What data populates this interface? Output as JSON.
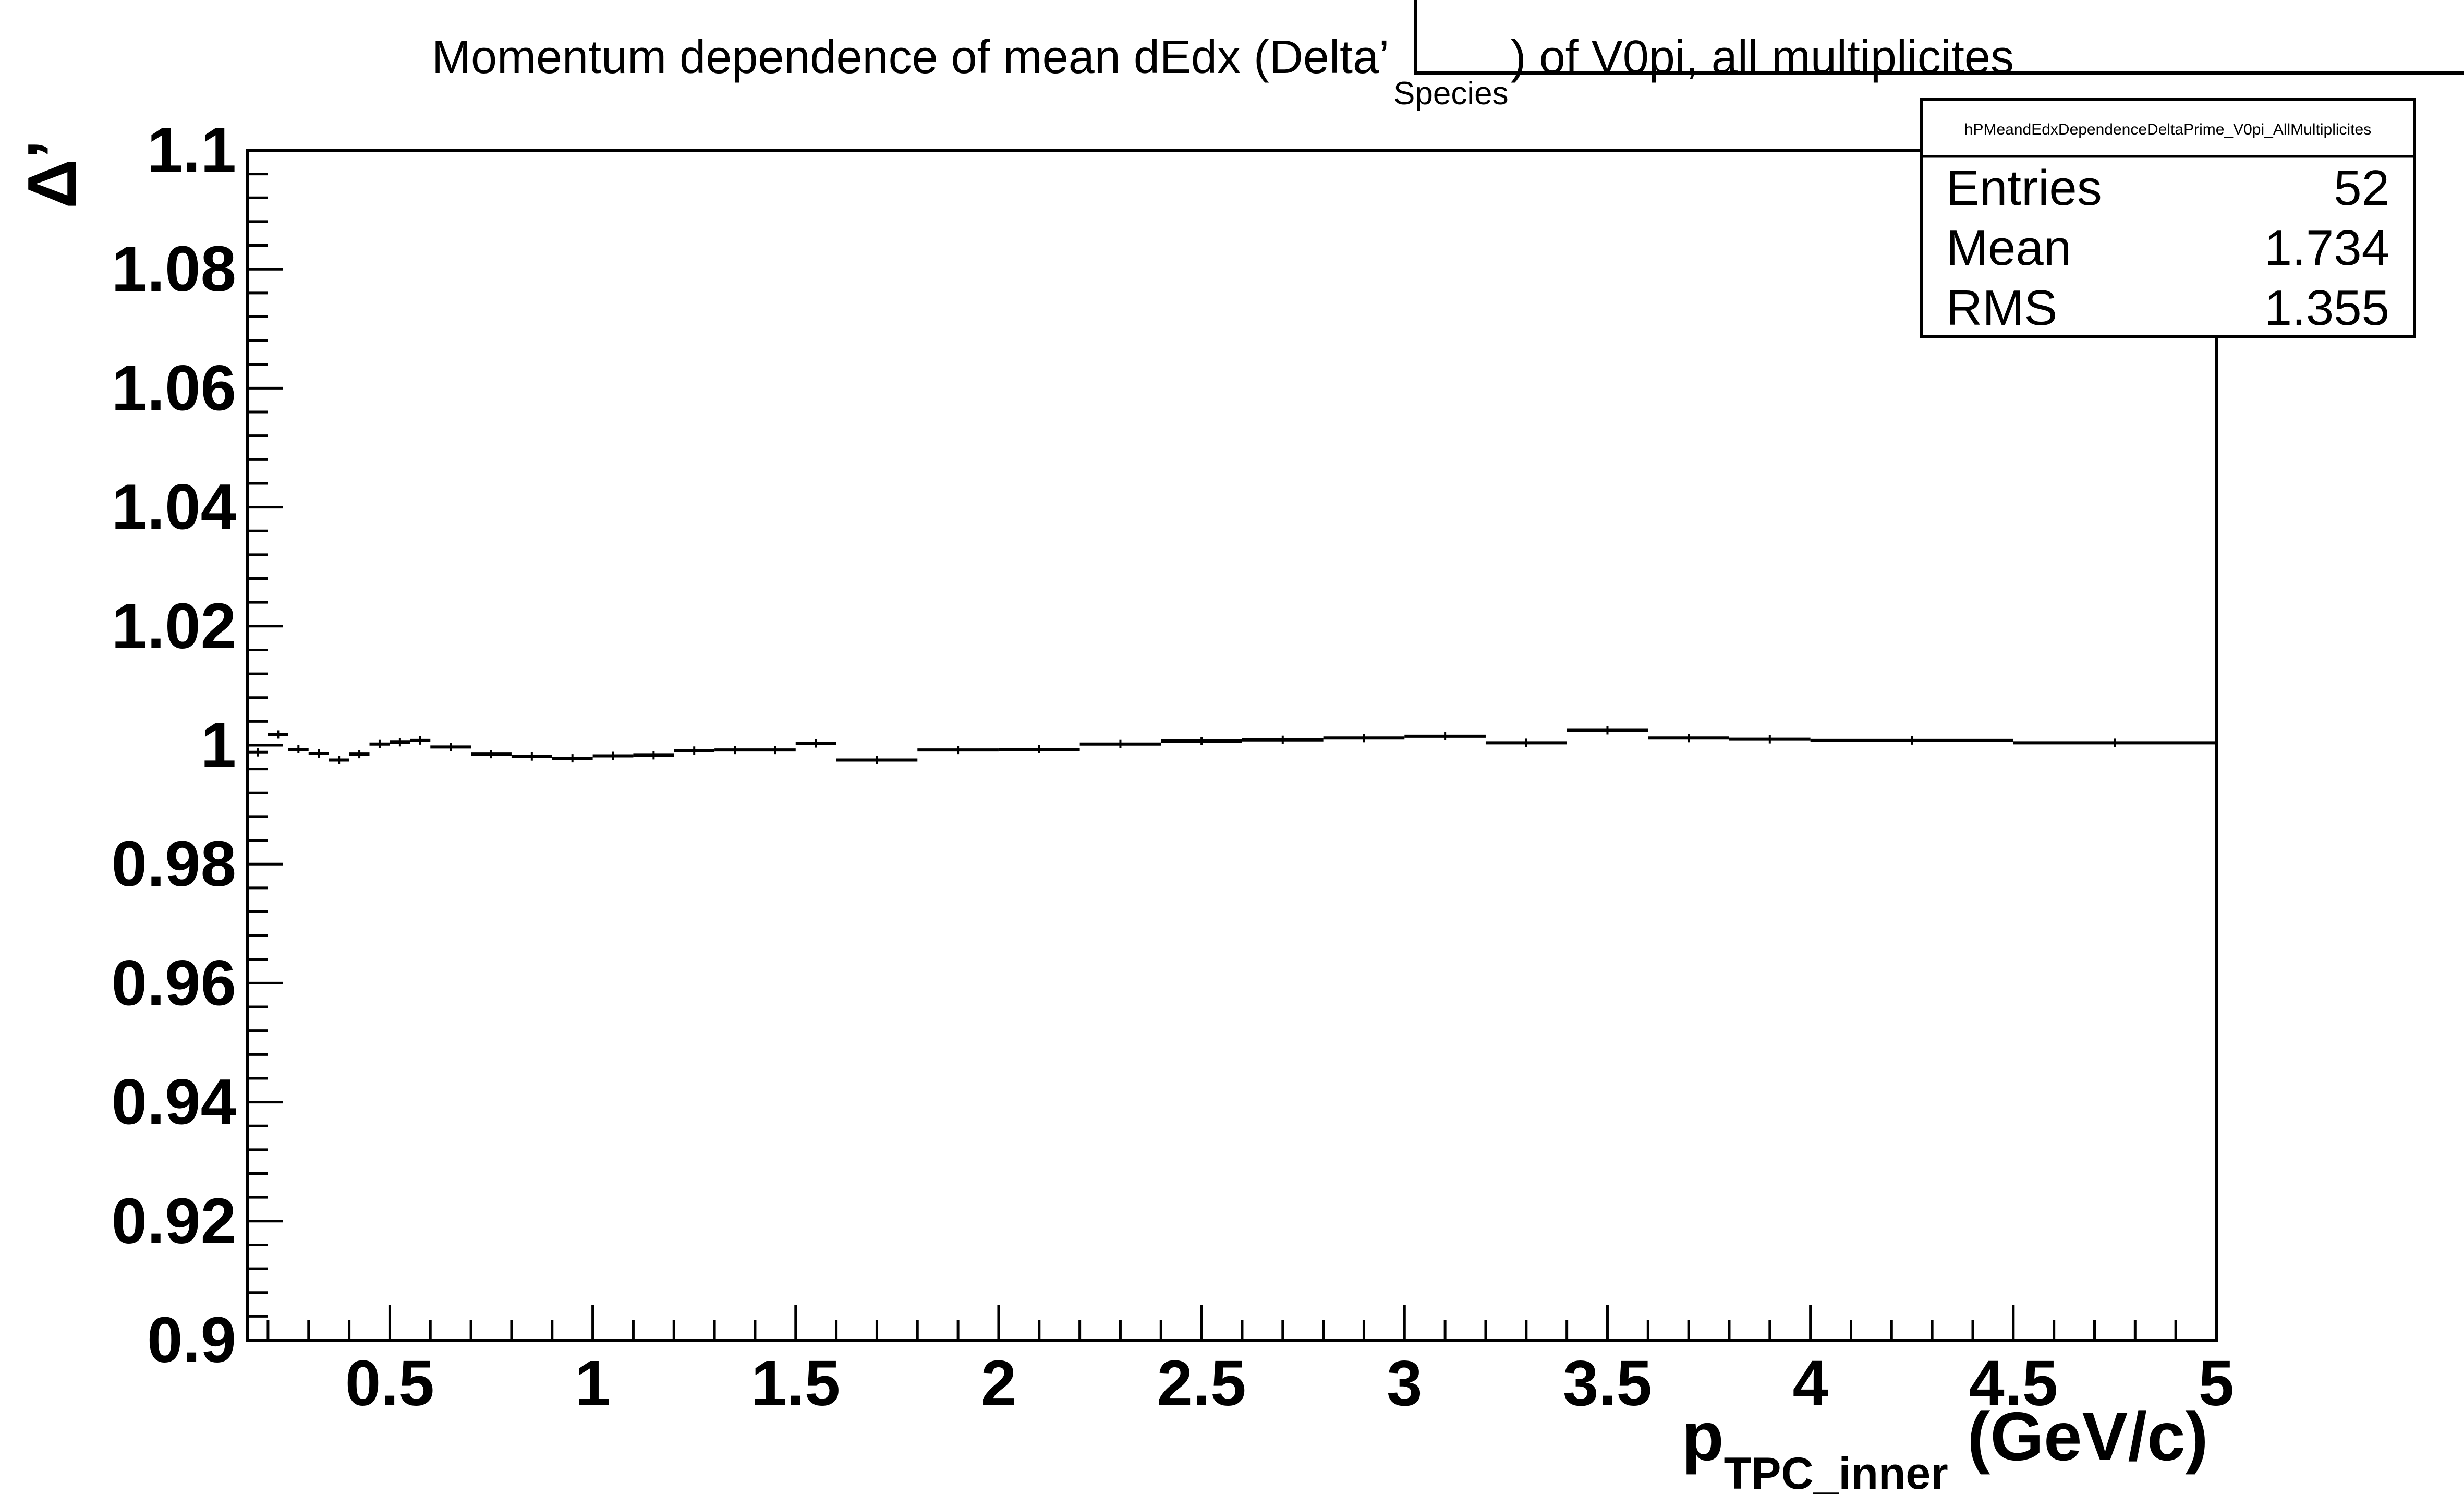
{
  "chart_data": {
    "type": "line",
    "title_parts": {
      "pre": "Momentum dependence of mean dEdx (Delta’",
      "sub": "Species",
      "post": ") of V0pi, all multiplicites"
    },
    "xlabel_parts": {
      "main": "p",
      "sub": "TPC_inner",
      "unit": " (GeV/c)"
    },
    "ylabel": "Δ’",
    "xlim": [
      0.15,
      5.0
    ],
    "ylim": [
      0.9,
      1.1
    ],
    "x_ticks": [
      {
        "v": 0.5,
        "label": "0.5"
      },
      {
        "v": 1.0,
        "label": "1"
      },
      {
        "v": 1.5,
        "label": "1.5"
      },
      {
        "v": 2.0,
        "label": "2"
      },
      {
        "v": 2.5,
        "label": "2.5"
      },
      {
        "v": 3.0,
        "label": "3"
      },
      {
        "v": 3.5,
        "label": "3.5"
      },
      {
        "v": 4.0,
        "label": "4"
      },
      {
        "v": 4.5,
        "label": "4.5"
      },
      {
        "v": 5.0,
        "label": "5"
      }
    ],
    "y_ticks": [
      {
        "v": 0.9,
        "label": "0.9"
      },
      {
        "v": 0.92,
        "label": "0.92"
      },
      {
        "v": 0.94,
        "label": "0.94"
      },
      {
        "v": 0.96,
        "label": "0.96"
      },
      {
        "v": 0.98,
        "label": "0.98"
      },
      {
        "v": 1.0,
        "label": "1"
      },
      {
        "v": 1.02,
        "label": "1.02"
      },
      {
        "v": 1.04,
        "label": "1.04"
      },
      {
        "v": 1.06,
        "label": "1.06"
      },
      {
        "v": 1.08,
        "label": "1.08"
      },
      {
        "v": 1.1,
        "label": "1.1"
      }
    ],
    "bins": [
      {
        "x0": 0.15,
        "x1": 0.2,
        "y": 0.9988
      },
      {
        "x0": 0.2,
        "x1": 0.25,
        "y": 1.0018
      },
      {
        "x0": 0.25,
        "x1": 0.3,
        "y": 0.9993
      },
      {
        "x0": 0.3,
        "x1": 0.35,
        "y": 0.9986
      },
      {
        "x0": 0.35,
        "x1": 0.4,
        "y": 0.9975
      },
      {
        "x0": 0.4,
        "x1": 0.45,
        "y": 0.9985
      },
      {
        "x0": 0.45,
        "x1": 0.5,
        "y": 1.0002
      },
      {
        "x0": 0.5,
        "x1": 0.55,
        "y": 1.0005
      },
      {
        "x0": 0.55,
        "x1": 0.6,
        "y": 1.0008
      },
      {
        "x0": 0.6,
        "x1": 0.7,
        "y": 0.9997
      },
      {
        "x0": 0.7,
        "x1": 0.8,
        "y": 0.9985
      },
      {
        "x0": 0.8,
        "x1": 0.9,
        "y": 0.9981
      },
      {
        "x0": 0.9,
        "x1": 1.0,
        "y": 0.9978
      },
      {
        "x0": 1.0,
        "x1": 1.1,
        "y": 0.9982
      },
      {
        "x0": 1.1,
        "x1": 1.2,
        "y": 0.9983
      },
      {
        "x0": 1.2,
        "x1": 1.3,
        "y": 0.9991
      },
      {
        "x0": 1.3,
        "x1": 1.4,
        "y": 0.9992
      },
      {
        "x0": 1.4,
        "x1": 1.5,
        "y": 0.9992
      },
      {
        "x0": 1.5,
        "x1": 1.6,
        "y": 1.0003
      },
      {
        "x0": 1.6,
        "x1": 1.8,
        "y": 0.9975
      },
      {
        "x0": 1.8,
        "x1": 2.0,
        "y": 0.9992
      },
      {
        "x0": 2.0,
        "x1": 2.2,
        "y": 0.9993
      },
      {
        "x0": 2.2,
        "x1": 2.4,
        "y": 1.0002
      },
      {
        "x0": 2.4,
        "x1": 2.6,
        "y": 1.0007
      },
      {
        "x0": 2.6,
        "x1": 2.8,
        "y": 1.0009
      },
      {
        "x0": 2.8,
        "x1": 3.0,
        "y": 1.0012
      },
      {
        "x0": 3.0,
        "x1": 3.2,
        "y": 1.0015
      },
      {
        "x0": 3.2,
        "x1": 3.4,
        "y": 1.0004
      },
      {
        "x0": 3.4,
        "x1": 3.6,
        "y": 1.0025
      },
      {
        "x0": 3.6,
        "x1": 3.8,
        "y": 1.0012
      },
      {
        "x0": 3.8,
        "x1": 4.0,
        "y": 1.001
      },
      {
        "x0": 4.0,
        "x1": 4.5,
        "y": 1.0008
      },
      {
        "x0": 4.5,
        "x1": 5.0,
        "y": 1.0004
      }
    ],
    "stats_box": {
      "name": "hPMeandEdxDependenceDeltaPrime_V0pi_AllMultiplicites",
      "rows": [
        {
          "label": "Entries",
          "value": "52"
        },
        {
          "label": "Mean",
          "value": "1.734"
        },
        {
          "label": "RMS",
          "value": "1.355"
        }
      ],
      "placement": "top-right"
    },
    "grid": false
  }
}
